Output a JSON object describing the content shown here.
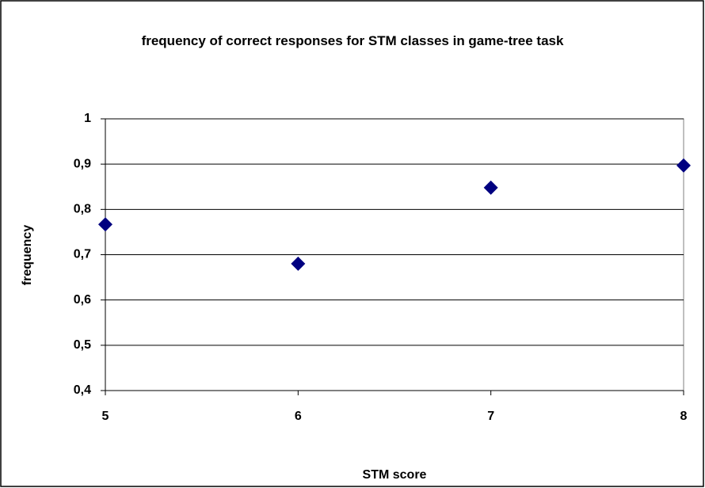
{
  "chart_data": {
    "type": "scatter",
    "title": "frequency of correct responses for STM classes in game-tree task",
    "xlabel": "STM score",
    "ylabel": "frequency",
    "x": [
      5,
      6,
      7,
      8
    ],
    "values": [
      0.767,
      0.68,
      0.848,
      0.897
    ],
    "color": "#000080",
    "xlim": [
      5,
      8
    ],
    "xticks": [
      5,
      6,
      7,
      8
    ],
    "ylim": [
      0.4,
      1
    ],
    "yticks": [
      {
        "value": 0.4,
        "label": "0,4"
      },
      {
        "value": 0.5,
        "label": "0,5"
      },
      {
        "value": 0.6,
        "label": "0,6"
      },
      {
        "value": 0.7,
        "label": "0,7"
      },
      {
        "value": 0.8,
        "label": "0,8"
      },
      {
        "value": 0.9,
        "label": "0,9"
      },
      {
        "value": 1,
        "label": "1"
      }
    ],
    "grid": true
  }
}
